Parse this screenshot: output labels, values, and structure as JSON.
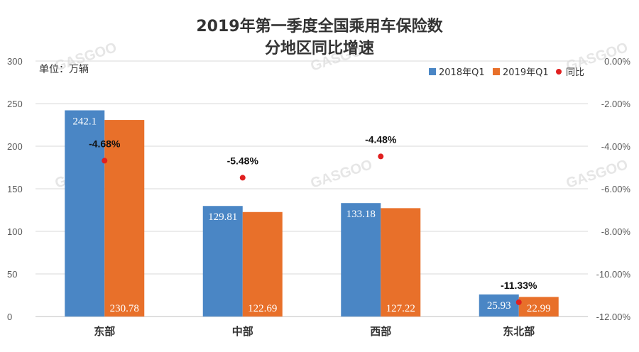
{
  "chart_data": {
    "type": "bar",
    "title_line1": "2019年第一季度全国乘用车保险数",
    "title_line2": "分地区同比增速",
    "unit_label": "单位：万辆",
    "categories": [
      "东部",
      "中部",
      "西部",
      "东北部"
    ],
    "series": [
      {
        "name": "2018年Q1",
        "values": [
          242.1,
          129.81,
          133.18,
          25.93
        ],
        "color": "#4a86c5",
        "axis": "left"
      },
      {
        "name": "2019年Q1",
        "values": [
          230.78,
          122.69,
          127.22,
          22.99
        ],
        "color": "#e8702a",
        "axis": "left"
      },
      {
        "name": "同比",
        "values": [
          -4.68,
          -5.48,
          -4.48,
          -11.33
        ],
        "color": "#e02020",
        "axis": "right",
        "type": "scatter"
      }
    ],
    "bar_labels": [
      [
        "242.1",
        "129.81",
        "133.18",
        "25.93"
      ],
      [
        "230.78",
        "122.69",
        "127.22",
        "22.99"
      ]
    ],
    "point_labels": [
      "-4.68%",
      "-5.48%",
      "-4.48%",
      "-11.33%"
    ],
    "y_left": {
      "min": 0,
      "max": 300,
      "ticks": [
        "0",
        "50",
        "100",
        "150",
        "200",
        "250",
        "300"
      ]
    },
    "y_right": {
      "min": -12,
      "max": 0,
      "ticks": [
        "0.00%",
        "-2.00%",
        "-4.00%",
        "-6.00%",
        "-8.00%",
        "-10.00%",
        "-12.00%"
      ]
    },
    "grid": true,
    "legend_position": "top-right"
  },
  "watermark_text": "GASGOO"
}
